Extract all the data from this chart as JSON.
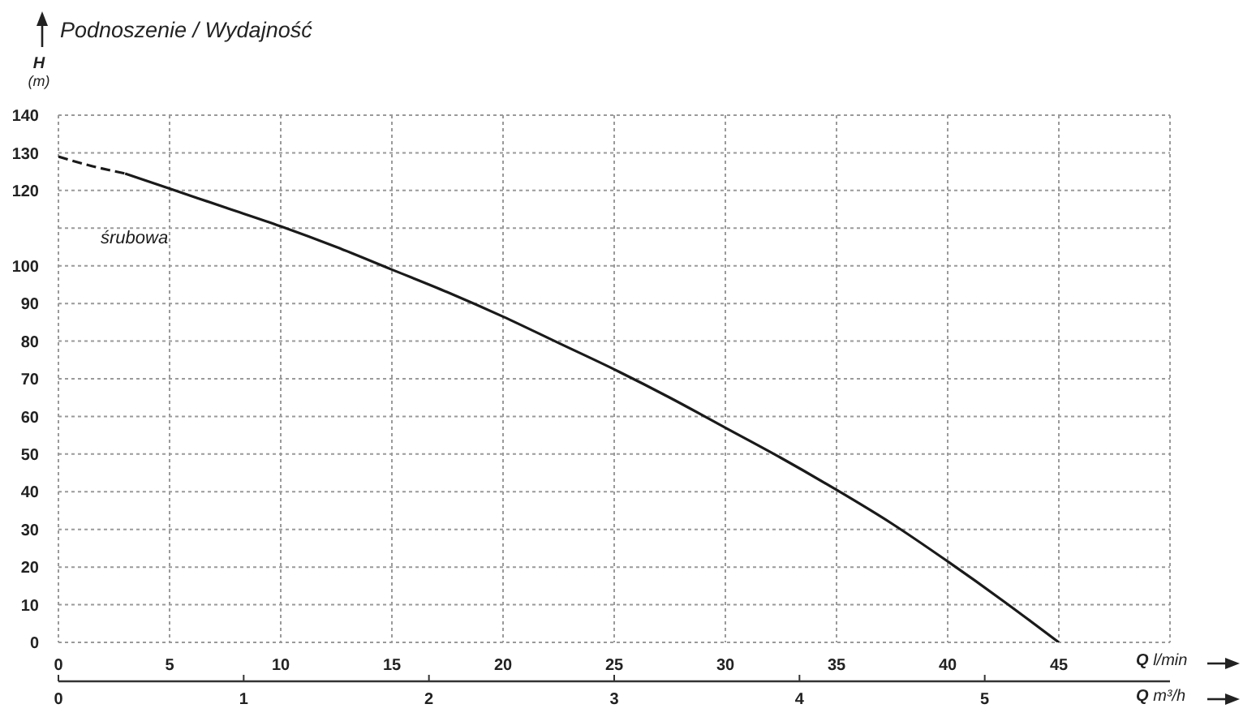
{
  "chart_data": {
    "type": "line",
    "title": "Podnoszenie / Wydajność",
    "ylabel": "H (m)",
    "xlabel": "Q l/min",
    "x2label": "Q m³/h",
    "xlim": [
      0,
      50
    ],
    "xticks": [
      0,
      5,
      10,
      15,
      20,
      25,
      30,
      35,
      40,
      45,
      {
        "value": 50,
        "label": null
      }
    ],
    "x2lim": [
      0,
      6
    ],
    "x2ticks": [
      0,
      1,
      2,
      3,
      4,
      5
    ],
    "ylim": [
      0,
      140
    ],
    "yticks": [
      0,
      10,
      20,
      30,
      40,
      50,
      60,
      70,
      80,
      90,
      100,
      {
        "value": 110,
        "label": null
      },
      120,
      130,
      140
    ],
    "grid": true,
    "series": [
      {
        "color": "#1a1a1a",
        "line_style": "dashed",
        "x": [
          0,
          1.5,
          3
        ],
        "values": [
          129,
          126.5,
          124.5
        ]
      },
      {
        "name": "śrubowa",
        "color": "#1a1a1a",
        "line_style": "solid",
        "x": [
          3,
          5,
          7.5,
          10,
          12.5,
          15,
          17.5,
          20,
          22.5,
          25,
          27.5,
          30,
          32.5,
          35,
          37.5,
          40,
          42.5,
          45
        ],
        "values": [
          124.5,
          120.5,
          115.5,
          110.5,
          105,
          99,
          93,
          86.5,
          79.5,
          72.5,
          65,
          57,
          49,
          40.5,
          31.5,
          21.5,
          11,
          0
        ]
      }
    ]
  }
}
